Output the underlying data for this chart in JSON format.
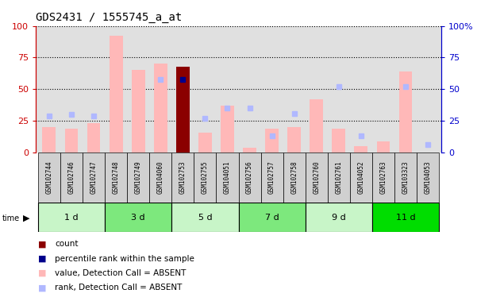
{
  "title": "GDS2431 / 1555745_a_at",
  "samples": [
    "GSM102744",
    "GSM102746",
    "GSM102747",
    "GSM102748",
    "GSM102749",
    "GSM104060",
    "GSM102753",
    "GSM102755",
    "GSM104051",
    "GSM102756",
    "GSM102757",
    "GSM102758",
    "GSM102760",
    "GSM102761",
    "GSM104052",
    "GSM102763",
    "GSM103323",
    "GSM104053"
  ],
  "groups": [
    {
      "label": "1 d",
      "indices": [
        0,
        1,
        2
      ],
      "color": "#c8f5c8"
    },
    {
      "label": "3 d",
      "indices": [
        3,
        4,
        5
      ],
      "color": "#7de87d"
    },
    {
      "label": "5 d",
      "indices": [
        6,
        7,
        8
      ],
      "color": "#c8f5c8"
    },
    {
      "label": "7 d",
      "indices": [
        9,
        10,
        11
      ],
      "color": "#7de87d"
    },
    {
      "label": "9 d",
      "indices": [
        12,
        13,
        14
      ],
      "color": "#c8f5c8"
    },
    {
      "label": "11 d",
      "indices": [
        15,
        16,
        17
      ],
      "color": "#00dd00"
    }
  ],
  "pink_bars": [
    20,
    19,
    23,
    92,
    65,
    70,
    0,
    16,
    37,
    4,
    19,
    20,
    42,
    19,
    5,
    9,
    64,
    0
  ],
  "rank_dots": [
    29,
    30,
    29,
    0,
    0,
    58,
    0,
    27,
    35,
    35,
    13,
    31,
    0,
    52,
    13,
    0,
    52,
    6
  ],
  "dark_red_bar_index": 6,
  "dark_red_bar_value": 68,
  "blue_square_index": 6,
  "blue_square_value": 58,
  "ylim": [
    0,
    100
  ],
  "yticks": [
    0,
    25,
    50,
    75,
    100
  ],
  "pink_color": "#ffb8b8",
  "rank_dot_color": "#b0b8ff",
  "dark_red_color": "#8b0000",
  "blue_square_color": "#00008b",
  "left_axis_color": "#cc0000",
  "right_axis_color": "#0000cc",
  "bg_plot_color": "#e0e0e0",
  "sample_bg_color": "#d0d0d0",
  "legend_items": [
    {
      "color": "#8b0000",
      "label": "count"
    },
    {
      "color": "#00008b",
      "label": "percentile rank within the sample"
    },
    {
      "color": "#ffb8b8",
      "label": "value, Detection Call = ABSENT"
    },
    {
      "color": "#b0b8ff",
      "label": "rank, Detection Call = ABSENT"
    }
  ]
}
